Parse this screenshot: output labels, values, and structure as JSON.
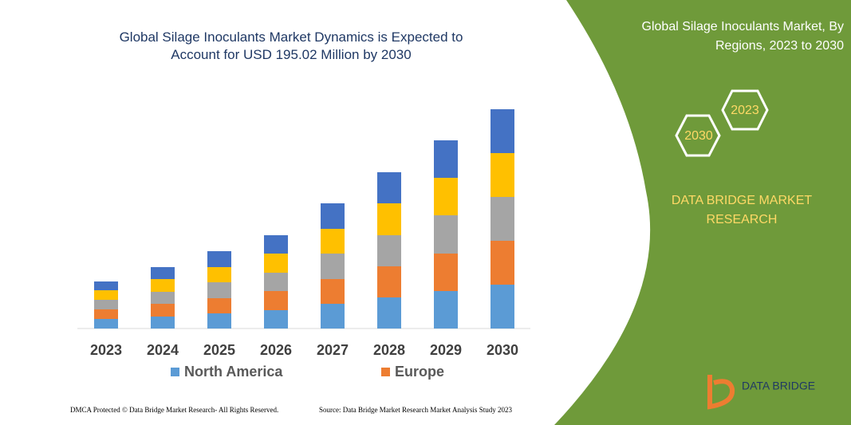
{
  "chart_data": {
    "type": "stacked-bar",
    "title": "Global Silage Inoculants Market Dynamics is Expected to Account for USD 195.02 Million by 2030",
    "categories": [
      "2023",
      "2024",
      "2025",
      "2026",
      "2027",
      "2028",
      "2029",
      "2030"
    ],
    "series": [
      {
        "name": "North America",
        "color": "#5b9bd5",
        "values": [
          12,
          15,
          19,
          23,
          31,
          39,
          47,
          55
        ]
      },
      {
        "name": "Europe",
        "color": "#ed7d31",
        "values": [
          12,
          16,
          19,
          24,
          31,
          39,
          47,
          55
        ]
      },
      {
        "color": "#a5a5a5",
        "values": [
          12,
          15,
          20,
          23,
          32,
          39,
          48,
          55
        ]
      },
      {
        "color": "#ffc000",
        "values": [
          12,
          16,
          19,
          24,
          31,
          40,
          47,
          55
        ]
      },
      {
        "color": "#4472c4",
        "values": [
          11,
          15,
          20,
          23,
          32,
          39,
          47,
          55
        ]
      }
    ]
  },
  "panel": {
    "title": "Global Silage Inoculants Market, By Regions, 2023 to 2030",
    "hex_front": "2023",
    "hex_back": "2030",
    "brand": "DATA BRIDGE MARKET RESEARCH",
    "logo": "DATA BRIDGE"
  },
  "footer": {
    "left": "DMCA Protected © Data Bridge Market Research- All Rights Reserved.",
    "right": "Source: Data Bridge Market Research Market Analysis Study 2023"
  }
}
